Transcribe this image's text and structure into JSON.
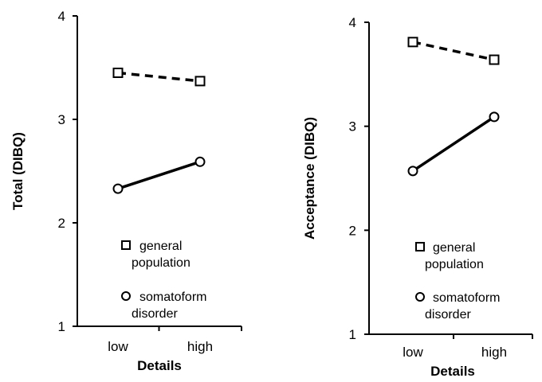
{
  "chart_data": [
    {
      "type": "line",
      "categories": [
        "low",
        "high"
      ],
      "series": [
        {
          "name": "general population",
          "values": [
            3.45,
            3.37
          ],
          "marker": "square",
          "line": "dashed"
        },
        {
          "name": "somatoform disorder",
          "values": [
            2.33,
            2.59
          ],
          "marker": "circle",
          "line": "solid"
        }
      ],
      "xlabel": "Details",
      "ylabel": "Total (DIBQ)",
      "ylim": [
        1,
        4
      ],
      "yticks": [
        "1",
        "2",
        "3",
        "4"
      ],
      "legend": {
        "general": [
          "general",
          "population"
        ],
        "somatoform": [
          "somatoform",
          "disorder"
        ]
      },
      "grid": false
    },
    {
      "type": "line",
      "categories": [
        "low",
        "high"
      ],
      "series": [
        {
          "name": "general population",
          "values": [
            3.81,
            3.64
          ],
          "marker": "square",
          "line": "dashed"
        },
        {
          "name": "somatoform disorder",
          "values": [
            2.57,
            3.09
          ],
          "marker": "circle",
          "line": "solid"
        }
      ],
      "xlabel": "Details",
      "ylabel": "Acceptance (DIBQ)",
      "ylim": [
        1,
        4
      ],
      "yticks": [
        "1",
        "2",
        "3",
        "4"
      ],
      "legend": {
        "general": [
          "general",
          "population"
        ],
        "somatoform": [
          "somatoform",
          "disorder"
        ]
      },
      "grid": false
    }
  ]
}
